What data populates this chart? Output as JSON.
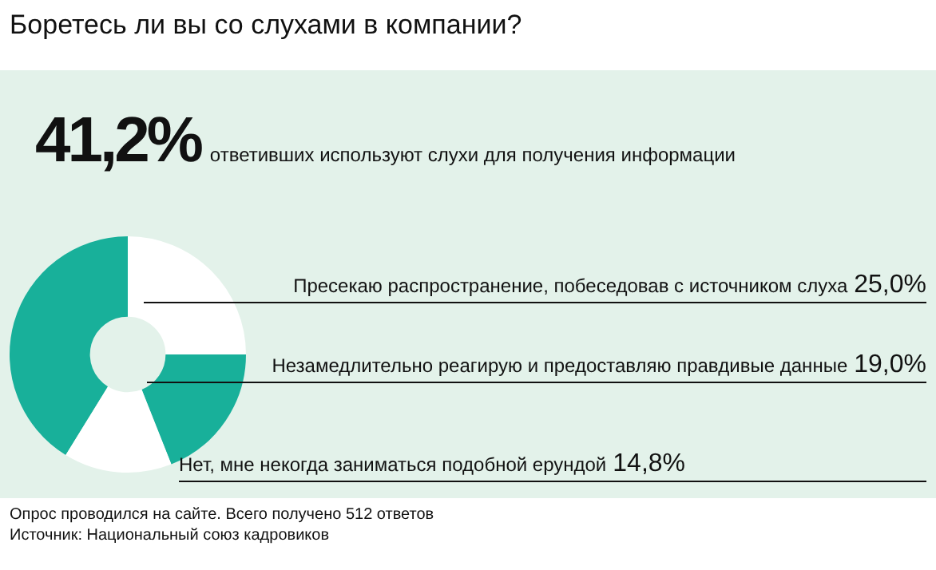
{
  "chart_data": {
    "type": "donut",
    "title": "Боретесь ли вы со слухами в компании?",
    "categories": [
      "ответивших используют слухи для получения информации",
      "Пресекаю распространение, побеседовав с источником слуха",
      "Незамедлительно реагирую и предоставляю правдивые данные",
      "Нет, мне некогда заниматься подобной ерундой"
    ],
    "values": [
      41.2,
      25.0,
      19.0,
      14.8
    ],
    "colors": [
      "#18b09a",
      "#ffffff",
      "#18b09a",
      "#ffffff"
    ],
    "value_labels": [
      "41,2%",
      "25,0%",
      "19,0%",
      "14,8%"
    ],
    "annotations": [
      "Опрос проводился на сайте. Всего получено  512 ответов",
      "Источник: Национальный союз кадровиков"
    ]
  }
}
